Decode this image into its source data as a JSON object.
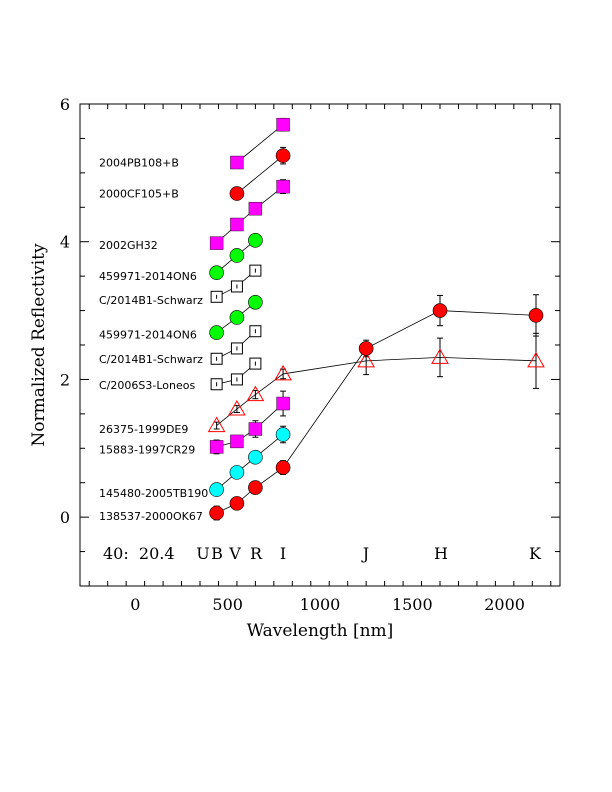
{
  "chart_data": {
    "type": "scatter",
    "title": "",
    "xlabel": "Wavelength [nm]",
    "ylabel": "Normalized Reflectivity",
    "xlim": [
      -300,
      2300
    ],
    "ylim": [
      -1,
      6
    ],
    "x_ticks": [
      0,
      500,
      1000,
      1500,
      2000
    ],
    "y_ticks": [
      0,
      2,
      4,
      6
    ],
    "note": "40:  20.4",
    "bands": [
      {
        "label": "U",
        "x": 440
      },
      {
        "label": "B",
        "x": 440
      },
      {
        "label": "V",
        "x": 550
      },
      {
        "label": "R",
        "x": 650
      },
      {
        "label": "I",
        "x": 800
      },
      {
        "label": "J",
        "x": 1250
      },
      {
        "label": "H",
        "x": 1650
      },
      {
        "label": "K",
        "x": 2170
      }
    ],
    "colors": {
      "red": "#ff0000",
      "magenta": "#ff00ff",
      "green": "#00ff00",
      "cyan": "#00ffff",
      "open": "#ffffff",
      "line": "#000000"
    },
    "series": [
      {
        "name": "2004PB108+B",
        "label_y": 5.15,
        "marker": "square",
        "color": "magenta",
        "points": [
          {
            "x": 550,
            "y": 5.15,
            "err": 0.05
          },
          {
            "x": 800,
            "y": 5.7,
            "err": 0.09
          }
        ]
      },
      {
        "name": "2000CF105+B",
        "label_y": 4.7,
        "marker": "circle",
        "color": "red",
        "points": [
          {
            "x": 550,
            "y": 4.7,
            "err": 0.05
          },
          {
            "x": 800,
            "y": 5.25,
            "err": 0.12
          }
        ]
      },
      {
        "name": "2002GH32",
        "label_y": 3.95,
        "marker": "square",
        "color": "magenta",
        "points": [
          {
            "x": 440,
            "y": 3.98,
            "err": 0.08
          },
          {
            "x": 550,
            "y": 4.25,
            "err": 0.05
          },
          {
            "x": 650,
            "y": 4.48,
            "err": 0.08
          },
          {
            "x": 800,
            "y": 4.8,
            "err": 0.1
          }
        ]
      },
      {
        "name": "459971-2014ON6",
        "label_y": 3.5,
        "marker": "circle",
        "color": "green",
        "points": [
          {
            "x": 440,
            "y": 3.55,
            "err": 0.03
          },
          {
            "x": 550,
            "y": 3.8,
            "err": 0.03
          },
          {
            "x": 650,
            "y": 4.02,
            "err": 0.04
          }
        ]
      },
      {
        "name": "C/2014B1-Schwarz",
        "label_y": 3.15,
        "marker": "open-square",
        "color": "open",
        "points": [
          {
            "x": 440,
            "y": 3.2,
            "err": 0.04
          },
          {
            "x": 550,
            "y": 3.35,
            "err": 0.04
          },
          {
            "x": 650,
            "y": 3.58,
            "err": 0.05
          }
        ]
      },
      {
        "name": "459971-2014ON6",
        "label_y": 2.65,
        "marker": "circle",
        "color": "green",
        "points": [
          {
            "x": 440,
            "y": 2.68,
            "err": 0.03
          },
          {
            "x": 550,
            "y": 2.9,
            "err": 0.03
          },
          {
            "x": 650,
            "y": 3.12,
            "err": 0.04
          }
        ]
      },
      {
        "name": "C/2014B1-Schwarz",
        "label_y": 2.3,
        "marker": "open-square",
        "color": "open",
        "points": [
          {
            "x": 440,
            "y": 2.3,
            "err": 0.04
          },
          {
            "x": 550,
            "y": 2.45,
            "err": 0.04
          },
          {
            "x": 650,
            "y": 2.7,
            "err": 0.05
          }
        ]
      },
      {
        "name": "C/2006S3-Loneos",
        "label_y": 1.92,
        "marker": "open-square",
        "color": "open",
        "points": [
          {
            "x": 440,
            "y": 1.93,
            "err": 0.04
          },
          {
            "x": 550,
            "y": 2.0,
            "err": 0.04
          },
          {
            "x": 650,
            "y": 2.23,
            "err": 0.05
          }
        ]
      },
      {
        "name": "26375-1999DE9",
        "label_y": 1.28,
        "marker": "open-triangle",
        "color": "open",
        "points": [
          {
            "x": 440,
            "y": 1.33,
            "err": 0.05
          },
          {
            "x": 550,
            "y": 1.57,
            "err": 0.05
          },
          {
            "x": 650,
            "y": 1.78,
            "err": 0.06
          },
          {
            "x": 800,
            "y": 2.08,
            "err": 0.07
          },
          {
            "x": 1250,
            "y": 2.27,
            "err": 0.2
          },
          {
            "x": 1650,
            "y": 2.32,
            "err": 0.28
          },
          {
            "x": 2170,
            "y": 2.27,
            "err": 0.4
          }
        ]
      },
      {
        "name": "15883-1997CR29",
        "label_y": 0.98,
        "marker": "square",
        "color": "magenta",
        "points": [
          {
            "x": 440,
            "y": 1.02,
            "err": 0.1
          },
          {
            "x": 550,
            "y": 1.1,
            "err": 0.07
          },
          {
            "x": 650,
            "y": 1.28,
            "err": 0.12
          },
          {
            "x": 800,
            "y": 1.65,
            "err": 0.18
          }
        ]
      },
      {
        "name": "145480-2005TB190",
        "label_y": 0.35,
        "marker": "circle",
        "color": "cyan",
        "points": [
          {
            "x": 440,
            "y": 0.4,
            "err": 0.08
          },
          {
            "x": 550,
            "y": 0.65,
            "err": 0.06
          },
          {
            "x": 650,
            "y": 0.87,
            "err": 0.08
          },
          {
            "x": 800,
            "y": 1.2,
            "err": 0.12
          }
        ]
      },
      {
        "name": "138537-2000OK67",
        "label_y": 0.02,
        "marker": "circle",
        "color": "red",
        "points": [
          {
            "x": 440,
            "y": 0.06,
            "err": 0.1
          },
          {
            "x": 550,
            "y": 0.2,
            "err": 0.06
          },
          {
            "x": 650,
            "y": 0.43,
            "err": 0.09
          },
          {
            "x": 800,
            "y": 0.72,
            "err": 0.1
          },
          {
            "x": 1250,
            "y": 2.45,
            "err": 0.12
          },
          {
            "x": 1650,
            "y": 3.0,
            "err": 0.22
          },
          {
            "x": 2170,
            "y": 2.93,
            "err": 0.3
          }
        ]
      }
    ]
  }
}
